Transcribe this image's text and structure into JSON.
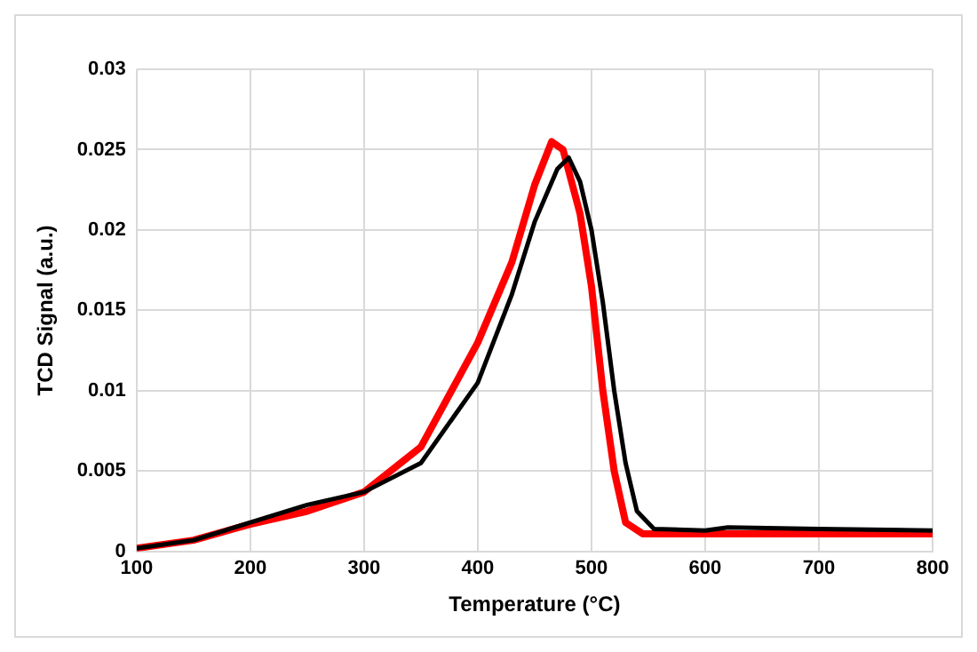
{
  "chart_data": {
    "type": "line",
    "xlabel": "Temperature (°C)",
    "ylabel": "TCD Signal (a.u.)",
    "xlim": [
      100,
      800
    ],
    "xticks": [
      100,
      200,
      300,
      400,
      500,
      600,
      700,
      800
    ],
    "ylim": [
      0,
      0.03
    ],
    "yticks": [
      0,
      0.005,
      0.01,
      0.015,
      0.02,
      0.025,
      0.03
    ],
    "grid": true,
    "legend": false,
    "marker": "none",
    "line_style": "solid",
    "series": [
      {
        "color": "#ff0000",
        "x": [
          100,
          150,
          200,
          250,
          300,
          350,
          400,
          430,
          450,
          465,
          475,
          490,
          500,
          510,
          520,
          530,
          545,
          600,
          700,
          800
        ],
        "values": [
          0.0002,
          0.0007,
          0.0017,
          0.0025,
          0.0037,
          0.0065,
          0.013,
          0.018,
          0.0228,
          0.0255,
          0.025,
          0.021,
          0.0165,
          0.01,
          0.005,
          0.0018,
          0.0011,
          0.0011,
          0.0011,
          0.0011
        ]
      },
      {
        "color": "#000000",
        "x": [
          100,
          150,
          200,
          250,
          300,
          350,
          400,
          430,
          450,
          470,
          480,
          490,
          500,
          510,
          520,
          530,
          540,
          555,
          600,
          620,
          700,
          800
        ],
        "values": [
          0.0002,
          0.0007,
          0.0018,
          0.0029,
          0.0037,
          0.0055,
          0.0105,
          0.016,
          0.0205,
          0.0238,
          0.0245,
          0.023,
          0.02,
          0.0155,
          0.01,
          0.0055,
          0.0025,
          0.0014,
          0.0013,
          0.0015,
          0.0014,
          0.0013
        ]
      }
    ]
  }
}
